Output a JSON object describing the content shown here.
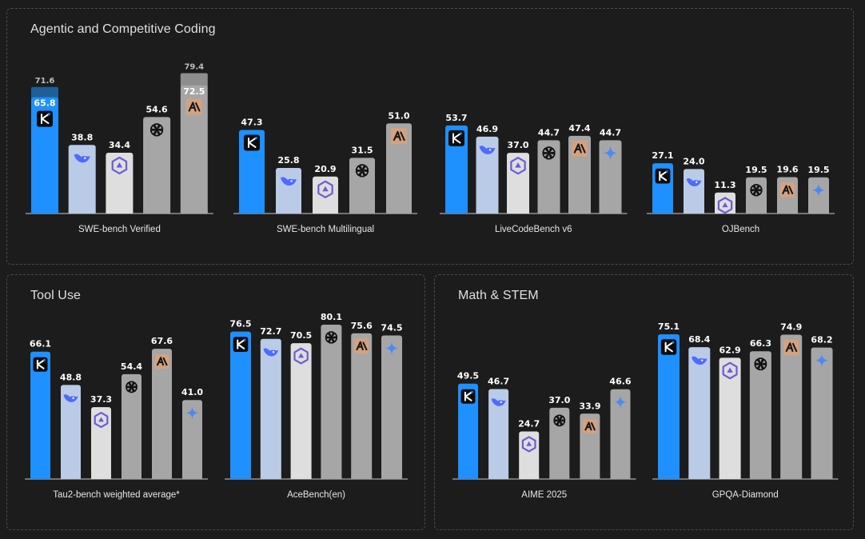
{
  "panels": [
    {
      "title": "Agentic and Competitive Coding"
    },
    {
      "title": "Tool Use"
    },
    {
      "title": "Math & STEM"
    }
  ],
  "colors": {
    "kimi": "#1e90ff",
    "deepseek": "#b9cbe6",
    "qwen": "#dedede",
    "openai": "#a6a6a6",
    "anthropic": "#a6a6a6",
    "gemini": "#a6a6a6",
    "anthropic_badge": "#d4a27f",
    "kimi_high_box": "#1d5f99",
    "anthropic_high_box": "#8e8e8e",
    "axis": "#cccccc"
  },
  "icons": {
    "kimi": "kimi-logo-icon",
    "deepseek": "deepseek-whale-icon",
    "qwen": "qwen-logo-icon",
    "openai": "openai-logo-icon",
    "anthropic": "anthropic-logo-icon",
    "gemini": "gemini-star-icon"
  },
  "chart_data": [
    {
      "type": "bar",
      "panel": 0,
      "title": "SWE-bench Verified",
      "bars": [
        {
          "model": "kimi",
          "value": 65.8,
          "high": 71.6
        },
        {
          "model": "deepseek",
          "value": 38.8
        },
        {
          "model": "qwen",
          "value": 34.4
        },
        {
          "model": "openai",
          "value": 54.6
        },
        {
          "model": "anthropic",
          "value": 72.5,
          "high": 79.4
        }
      ]
    },
    {
      "type": "bar",
      "panel": 0,
      "title": "SWE-bench Multilingual",
      "bars": [
        {
          "model": "kimi",
          "value": 47.3
        },
        {
          "model": "deepseek",
          "value": 25.8
        },
        {
          "model": "qwen",
          "value": 20.9
        },
        {
          "model": "openai",
          "value": 31.5
        },
        {
          "model": "anthropic",
          "value": 51.0
        }
      ]
    },
    {
      "type": "bar",
      "panel": 0,
      "title": "LiveCodeBench v6",
      "bars": [
        {
          "model": "kimi",
          "value": 53.7
        },
        {
          "model": "deepseek",
          "value": 46.9
        },
        {
          "model": "qwen",
          "value": 37.0
        },
        {
          "model": "openai",
          "value": 44.7
        },
        {
          "model": "anthropic",
          "value": 47.4
        },
        {
          "model": "gemini",
          "value": 44.7
        }
      ]
    },
    {
      "type": "bar",
      "panel": 0,
      "title": "OJBench",
      "bars": [
        {
          "model": "kimi",
          "value": 27.1
        },
        {
          "model": "deepseek",
          "value": 24.0
        },
        {
          "model": "qwen",
          "value": 11.3
        },
        {
          "model": "openai",
          "value": 19.5
        },
        {
          "model": "anthropic",
          "value": 19.6
        },
        {
          "model": "gemini",
          "value": 19.5
        }
      ]
    },
    {
      "type": "bar",
      "panel": 1,
      "title": "Tau2-bench weighted average*",
      "bars": [
        {
          "model": "kimi",
          "value": 66.1
        },
        {
          "model": "deepseek",
          "value": 48.8
        },
        {
          "model": "qwen",
          "value": 37.3
        },
        {
          "model": "openai",
          "value": 54.4
        },
        {
          "model": "anthropic",
          "value": 67.6
        },
        {
          "model": "gemini",
          "value": 41.0
        }
      ]
    },
    {
      "type": "bar",
      "panel": 1,
      "title": "AceBench(en)",
      "bars": [
        {
          "model": "kimi",
          "value": 76.5
        },
        {
          "model": "deepseek",
          "value": 72.7
        },
        {
          "model": "qwen",
          "value": 70.5
        },
        {
          "model": "openai",
          "value": 80.1
        },
        {
          "model": "anthropic",
          "value": 75.6
        },
        {
          "model": "gemini",
          "value": 74.5
        }
      ]
    },
    {
      "type": "bar",
      "panel": 2,
      "title": "AIME 2025",
      "bars": [
        {
          "model": "kimi",
          "value": 49.5
        },
        {
          "model": "deepseek",
          "value": 46.7
        },
        {
          "model": "qwen",
          "value": 24.7
        },
        {
          "model": "openai",
          "value": 37.0
        },
        {
          "model": "anthropic",
          "value": 33.9
        },
        {
          "model": "gemini",
          "value": 46.6
        }
      ]
    },
    {
      "type": "bar",
      "panel": 2,
      "title": "GPQA-Diamond",
      "bars": [
        {
          "model": "kimi",
          "value": 75.1
        },
        {
          "model": "deepseek",
          "value": 68.4
        },
        {
          "model": "qwen",
          "value": 62.9
        },
        {
          "model": "openai",
          "value": 66.3
        },
        {
          "model": "anthropic",
          "value": 74.9
        },
        {
          "model": "gemini",
          "value": 68.2
        }
      ]
    }
  ]
}
